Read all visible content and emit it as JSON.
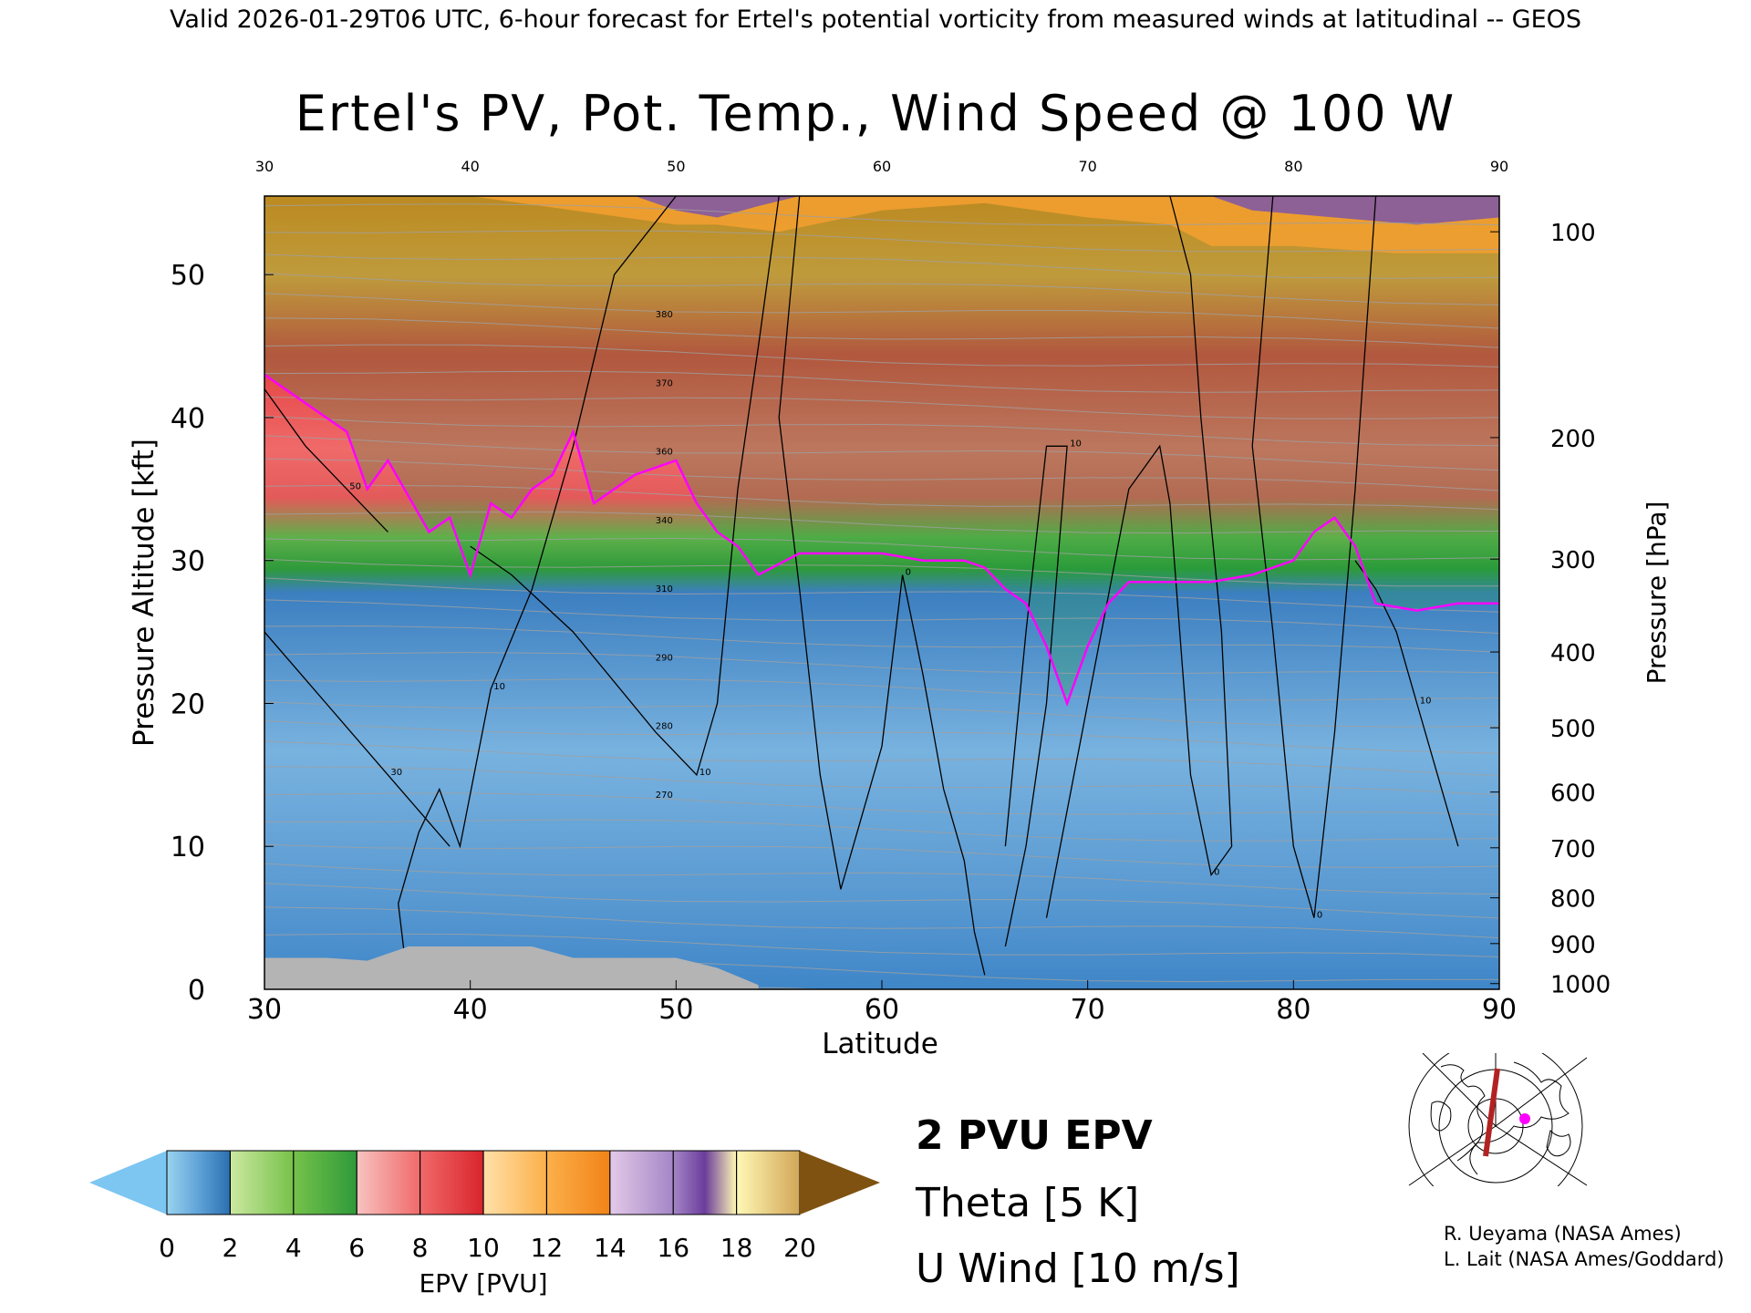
{
  "header": {
    "line": "Valid 2026-01-29T06 UTC, 6-hour forecast for Ertel's potential vorticity from measured winds at latitudinal -- GEOS"
  },
  "chart_data": {
    "type": "heatmap",
    "title": "Ertel's PV, Pot. Temp., Wind Speed @ 100 W",
    "xlabel": "Latitude",
    "ylabel_left": "Pressure Altitude [kft]",
    "ylabel_right": "Pressure [hPa]",
    "xlim": [
      30,
      90
    ],
    "ylim": [
      0,
      55.5
    ],
    "x_ticks": [
      30,
      40,
      50,
      60,
      70,
      80,
      90
    ],
    "x_tick_labels": [
      "30",
      "40",
      "50",
      "60",
      "70",
      "80",
      "90"
    ],
    "top_tick_labels": [
      "30",
      "40",
      "50",
      "60",
      "70",
      "80",
      "90"
    ],
    "y_ticks": [
      0,
      10,
      20,
      30,
      40,
      50
    ],
    "y_tick_labels": [
      "0",
      "10",
      "20",
      "30",
      "40",
      "50"
    ],
    "pressure_ticks": [
      {
        "label": "100",
        "kft": 53.0
      },
      {
        "label": "200",
        "kft": 38.6
      },
      {
        "label": "300",
        "kft": 30.1
      },
      {
        "label": "400",
        "kft": 23.6
      },
      {
        "label": "500",
        "kft": 18.3
      },
      {
        "label": "600",
        "kft": 13.8
      },
      {
        "label": "700",
        "kft": 9.9
      },
      {
        "label": "800",
        "kft": 6.4
      },
      {
        "label": "900",
        "kft": 3.2
      },
      {
        "label": "1000",
        "kft": 0.4
      }
    ],
    "pv_2pvu_contour": {
      "lat": [
        30,
        32,
        34,
        35,
        36,
        38,
        39,
        40,
        41,
        42,
        43,
        44,
        45,
        46,
        47,
        48,
        50,
        51,
        52,
        53,
        54,
        56,
        58,
        60,
        62,
        64,
        65,
        66,
        67,
        68,
        69,
        70,
        71,
        72,
        74,
        76,
        78,
        80,
        81,
        82,
        83,
        84,
        86,
        88,
        90
      ],
      "kft": [
        43,
        41,
        39,
        35,
        37,
        32,
        33,
        29,
        34,
        33,
        35,
        36,
        39,
        34,
        35,
        36,
        37,
        34,
        32,
        31,
        29,
        30.5,
        30.5,
        30.5,
        30,
        30,
        29.5,
        28,
        27,
        24,
        20,
        24,
        27,
        28.5,
        28.5,
        28.5,
        29,
        30,
        32,
        33,
        31,
        27,
        26.5,
        27,
        27
      ]
    },
    "top_layer_contours": [
      {
        "name": "orange",
        "lat": [
          30,
          40,
          50,
          52,
          55,
          60,
          65,
          70,
          74,
          76,
          80,
          85,
          90
        ],
        "kft": [
          55.5,
          55.5,
          53.5,
          53.5,
          53,
          54.5,
          55,
          54,
          53.5,
          52,
          52,
          51.5,
          51.5
        ]
      },
      {
        "name": "purple",
        "lat": [
          30,
          48,
          50,
          52,
          54,
          56,
          76,
          78,
          82,
          86,
          90
        ],
        "kft": [
          55.5,
          55.5,
          54.5,
          54,
          54.8,
          55.5,
          55.5,
          54.5,
          54,
          53.5,
          54
        ]
      }
    ],
    "terrain_kft": {
      "lat": [
        30,
        33,
        35,
        37,
        40,
        43,
        45,
        47,
        50,
        52,
        54
      ],
      "kft": [
        2.2,
        2.2,
        2.0,
        3.0,
        3.0,
        3.0,
        2.2,
        2.2,
        2.2,
        1.5,
        0.3
      ]
    },
    "u_wind_contours": [
      {
        "label": "10",
        "lat": [
          40,
          42,
          45,
          49,
          51,
          52,
          53,
          54,
          55
        ],
        "kft": [
          31,
          29,
          25,
          18,
          15,
          20,
          35,
          45,
          55.5
        ]
      },
      {
        "label": "10",
        "lat": [
          37,
          36.5,
          37.5,
          38.5,
          39.5,
          41,
          43,
          45,
          47,
          50
        ],
        "kft": [
          0,
          6,
          11,
          14,
          10,
          21,
          28,
          38,
          50,
          55.5
        ]
      },
      {
        "label": "0",
        "lat": [
          56,
          55,
          56,
          57,
          58,
          60,
          61,
          62,
          63,
          64,
          64.5,
          65
        ],
        "kft": [
          55.5,
          40,
          28,
          15,
          7,
          17,
          29,
          22,
          14,
          9,
          4,
          1
        ]
      },
      {
        "label": "10",
        "lat": [
          66,
          67,
          68,
          69,
          68,
          67,
          66
        ],
        "kft": [
          10,
          25,
          38,
          38,
          20,
          10,
          3
        ]
      },
      {
        "label": "0",
        "lat": [
          68,
          70,
          72,
          73.5,
          74,
          75,
          76,
          77,
          76.5,
          75.5,
          75,
          74
        ],
        "kft": [
          5,
          20,
          35,
          38,
          34,
          15,
          8,
          10,
          25,
          40,
          50,
          55.5
        ]
      },
      {
        "label": "0",
        "lat": [
          79,
          78,
          79,
          80,
          81,
          82,
          83,
          84
        ],
        "kft": [
          55.5,
          38,
          25,
          10,
          5,
          18,
          35,
          55.5
        ]
      },
      {
        "label": "10",
        "lat": [
          83,
          84,
          85,
          86,
          87,
          88
        ],
        "kft": [
          30,
          28,
          25,
          20,
          15,
          10
        ]
      },
      {
        "label": "30",
        "lat": [
          30,
          33,
          36,
          39
        ],
        "kft": [
          25,
          20,
          15,
          10
        ]
      },
      {
        "label": "50",
        "lat": [
          30,
          32,
          34,
          36
        ],
        "kft": [
          42,
          38,
          35,
          32
        ]
      }
    ],
    "theta_labels": [
      "380",
      "370",
      "360",
      "340",
      "310",
      "290",
      "280",
      "270"
    ],
    "colorbar": {
      "label": "EPV [PVU]",
      "tick_labels": [
        "0",
        "2",
        "4",
        "6",
        "8",
        "10",
        "12",
        "14",
        "16",
        "18",
        "20"
      ],
      "min": 0,
      "max": 20,
      "underflow_color": "#7dc6f2",
      "overflow_color": "#7f5211",
      "stops": [
        {
          "v": 0,
          "c": "#9ad3ee"
        },
        {
          "v": 1,
          "c": "#5fa3d8"
        },
        {
          "v": 2,
          "c": "#2c6fb0"
        },
        {
          "v": 2.01,
          "c": "#cce8a0"
        },
        {
          "v": 4,
          "c": "#76c24a"
        },
        {
          "v": 6,
          "c": "#2e9a3a"
        },
        {
          "v": 6.01,
          "c": "#f7c3c0"
        },
        {
          "v": 8,
          "c": "#f06a6a"
        },
        {
          "v": 10,
          "c": "#d9242c"
        },
        {
          "v": 10.01,
          "c": "#ffe0a8"
        },
        {
          "v": 12,
          "c": "#fcb04a"
        },
        {
          "v": 14,
          "c": "#f18318"
        },
        {
          "v": 14.01,
          "c": "#e3c9e8"
        },
        {
          "v": 16,
          "c": "#a486c6"
        },
        {
          "v": 17,
          "c": "#6b3d9b"
        },
        {
          "v": 18,
          "c": "#fff9b5"
        },
        {
          "v": 20,
          "c": "#d2a657"
        }
      ]
    },
    "legend_items": [
      {
        "label": "2 PVU EPV",
        "color": "#ff00ff"
      },
      {
        "label": "Theta [5 K]",
        "color": "#9a9a9a"
      },
      {
        "label": "U Wind [10 m/s]",
        "color": "#000000"
      }
    ]
  },
  "inset_map": {
    "section_color": "#b22222",
    "marker_color": "#ff00ff"
  },
  "credits": [
    "R. Ueyama (NASA Ames)",
    "L. Lait (NASA Ames/Goddard)"
  ]
}
